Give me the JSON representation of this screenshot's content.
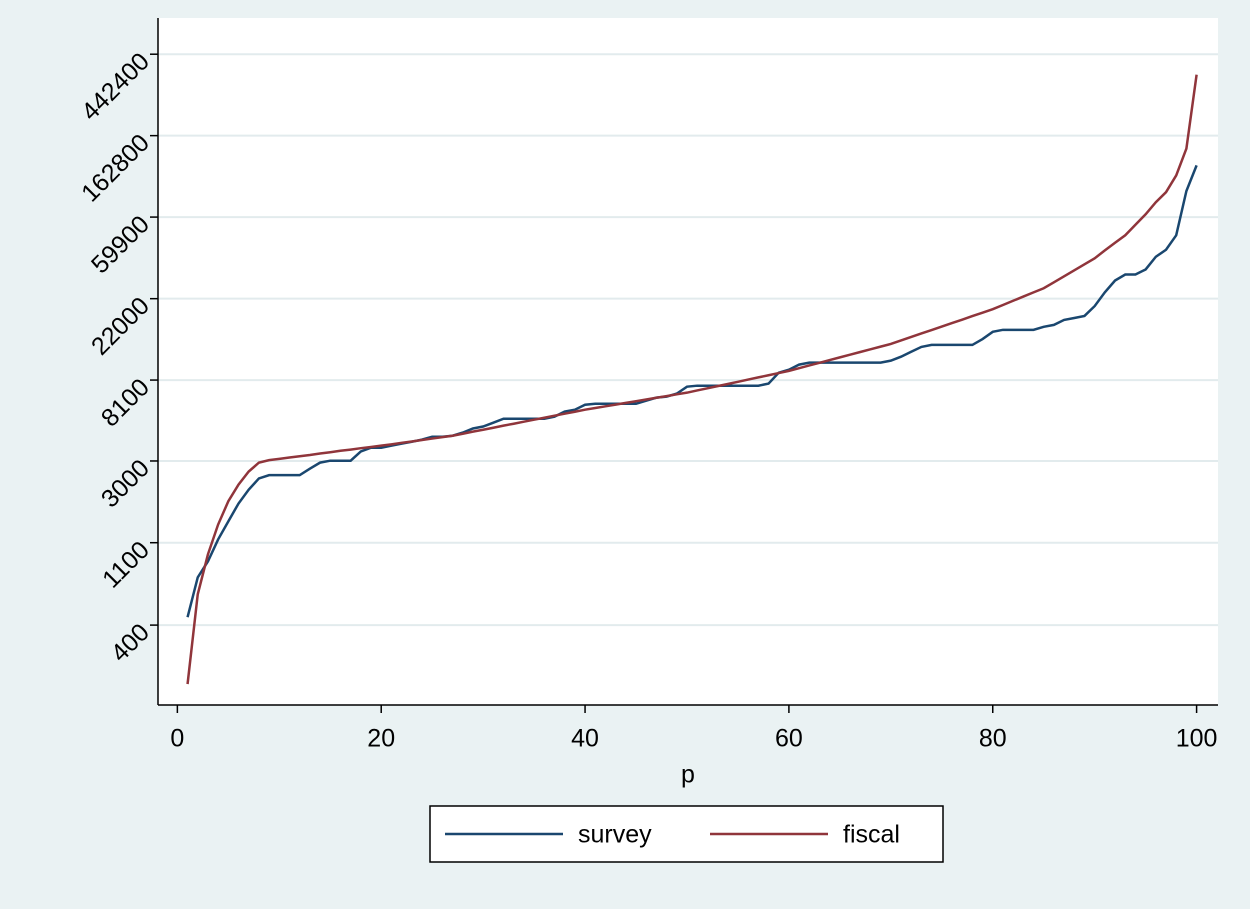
{
  "chart_data": {
    "type": "line",
    "x_label": "p",
    "log_y": true,
    "grid": true,
    "legend": "bottom",
    "xlim": [
      -1.9,
      102.1
    ],
    "xticks": [
      0,
      20,
      40,
      60,
      80,
      100
    ],
    "ylim": [
      150,
      690000
    ],
    "yticks": [
      400,
      1100,
      3000,
      8100,
      22000,
      59900,
      162800,
      442400
    ],
    "x": [
      1,
      2,
      3,
      4,
      5,
      6,
      7,
      8,
      9,
      10,
      11,
      12,
      13,
      14,
      15,
      16,
      17,
      18,
      19,
      20,
      21,
      22,
      23,
      24,
      25,
      26,
      27,
      28,
      29,
      30,
      31,
      32,
      33,
      34,
      35,
      36,
      37,
      38,
      39,
      40,
      41,
      42,
      43,
      44,
      45,
      46,
      47,
      48,
      49,
      50,
      51,
      52,
      53,
      54,
      55,
      56,
      57,
      58,
      59,
      60,
      61,
      62,
      63,
      64,
      65,
      66,
      67,
      68,
      69,
      70,
      71,
      72,
      73,
      74,
      75,
      76,
      77,
      78,
      79,
      80,
      81,
      82,
      83,
      84,
      85,
      86,
      87,
      88,
      89,
      90,
      91,
      92,
      93,
      94,
      95,
      96,
      97,
      98,
      99,
      100
    ],
    "series": [
      {
        "name": "survey",
        "color": "#1a476f",
        "values": [
          441,
          719,
          875,
          1145,
          1430,
          1780,
          2110,
          2420,
          2520,
          2520,
          2520,
          2520,
          2730,
          2940,
          3010,
          3010,
          3010,
          3370,
          3530,
          3530,
          3620,
          3710,
          3800,
          3900,
          4040,
          4040,
          4090,
          4250,
          4470,
          4580,
          4800,
          5040,
          5040,
          5040,
          5040,
          5040,
          5170,
          5500,
          5630,
          5980,
          6060,
          6060,
          6060,
          6060,
          6060,
          6290,
          6530,
          6610,
          6860,
          7470,
          7560,
          7560,
          7560,
          7560,
          7560,
          7560,
          7560,
          7750,
          8870,
          9200,
          9790,
          10030,
          10030,
          10030,
          10030,
          10030,
          10030,
          10030,
          10030,
          10280,
          10790,
          11460,
          12170,
          12470,
          12470,
          12470,
          12470,
          12470,
          13400,
          14650,
          15010,
          15010,
          15010,
          15010,
          15570,
          15950,
          16950,
          17360,
          17800,
          20080,
          23800,
          27500,
          29600,
          29600,
          31500,
          36800,
          40100,
          47900,
          82500,
          113000
        ]
      },
      {
        "name": "fiscal",
        "color": "#90353b",
        "values": [
          194,
          584,
          953,
          1375,
          1830,
          2245,
          2635,
          2940,
          3030,
          3080,
          3130,
          3180,
          3230,
          3290,
          3340,
          3400,
          3450,
          3510,
          3560,
          3620,
          3680,
          3750,
          3810,
          3880,
          3950,
          4020,
          4090,
          4190,
          4300,
          4400,
          4510,
          4630,
          4740,
          4860,
          4980,
          5100,
          5230,
          5360,
          5490,
          5630,
          5750,
          5870,
          5990,
          6120,
          6250,
          6380,
          6520,
          6650,
          6800,
          6940,
          7130,
          7320,
          7520,
          7720,
          7930,
          8150,
          8370,
          8590,
          8830,
          9070,
          9370,
          9690,
          10010,
          10350,
          10700,
          11060,
          11430,
          11810,
          12210,
          12620,
          13170,
          13750,
          14350,
          14970,
          15620,
          16300,
          17010,
          17760,
          18530,
          19330,
          20360,
          21440,
          22570,
          23770,
          25000,
          26900,
          28960,
          31170,
          33540,
          36100,
          39800,
          43700,
          47900,
          54500,
          62000,
          71900,
          81300,
          99900,
          139000,
          344000
        ]
      }
    ]
  }
}
